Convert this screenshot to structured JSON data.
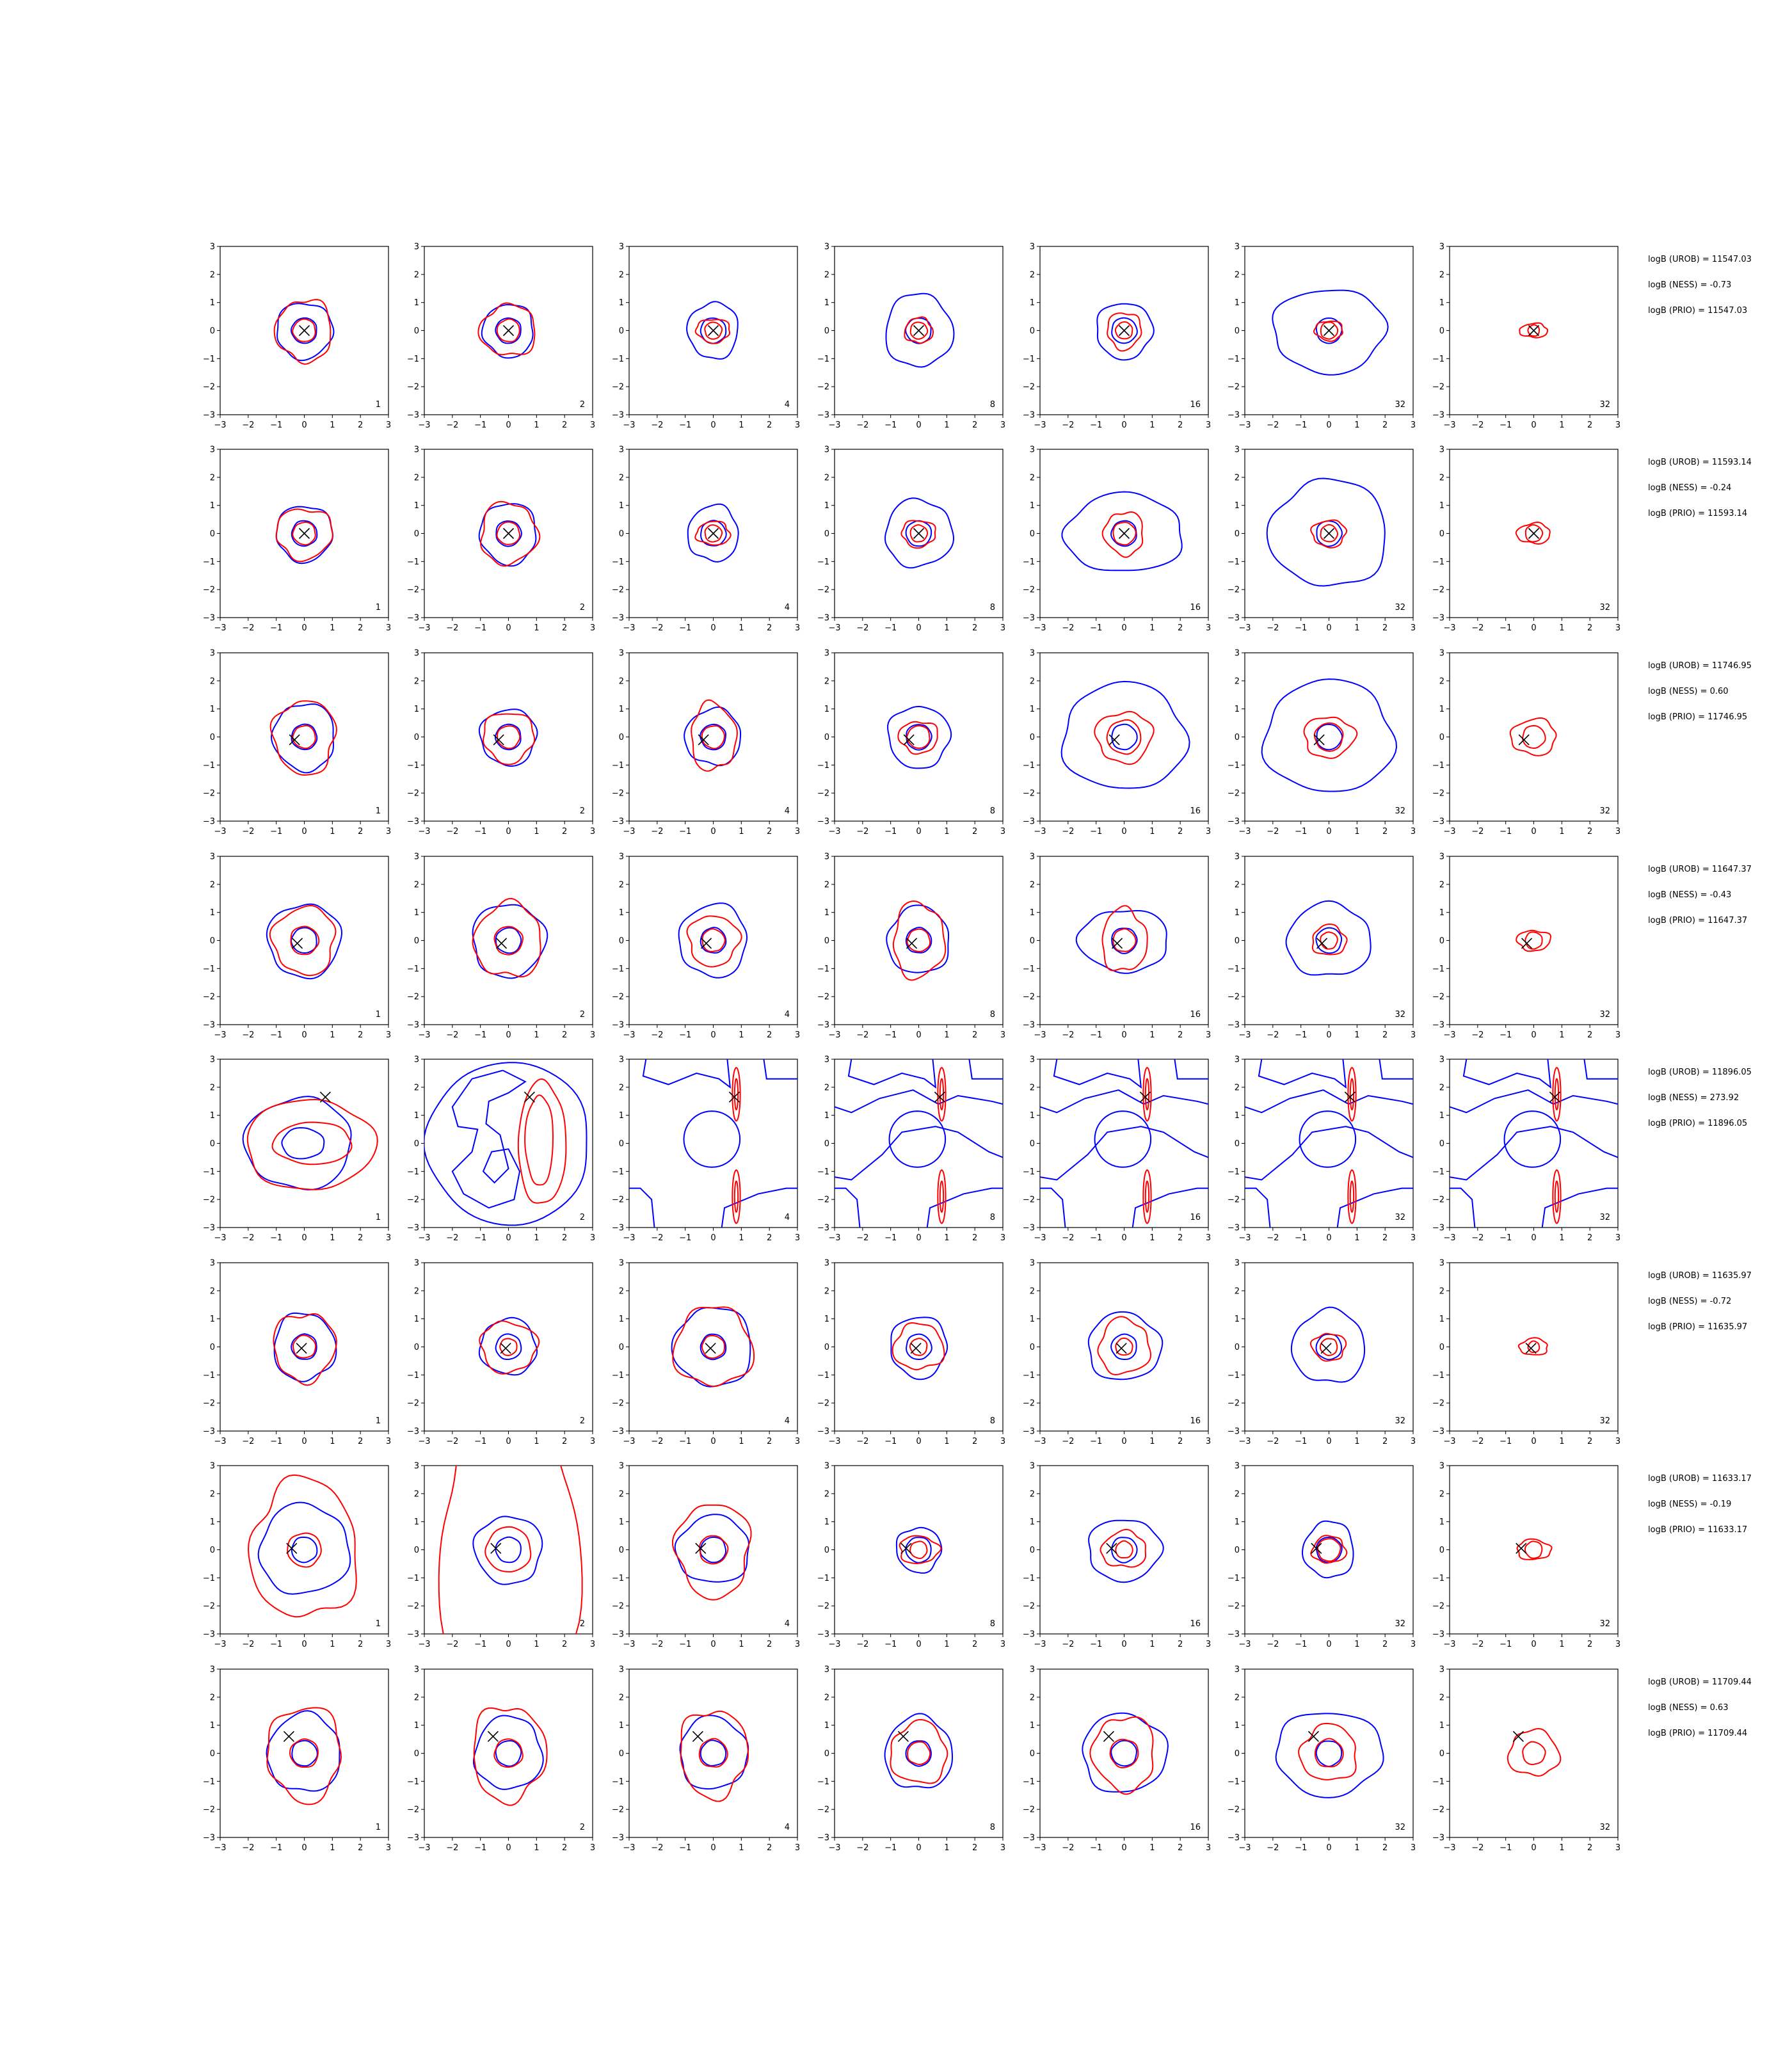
{
  "chart_data": {
    "type": "contour-grid",
    "xlim": [
      -3,
      3
    ],
    "ylim": [
      -3,
      3
    ],
    "ticks": [
      "−3",
      "−2",
      "−1",
      "0",
      "1",
      "2",
      "3"
    ],
    "tick_values": [
      -3,
      -2,
      -1,
      0,
      1,
      2,
      3
    ],
    "colors": {
      "blue": "#0000ff",
      "red": "#ff0000",
      "marker": "#000000"
    },
    "column_labels": [
      "1",
      "2",
      "4",
      "8",
      "16",
      "32",
      "32"
    ],
    "rows": [
      {
        "marker": [
          0.0,
          0.0
        ],
        "stats": [
          "logB (UROB) = 11547.03",
          "logB (NESS) = -0.73",
          "logB (PRIO) = 11547.03"
        ],
        "blue": [
          [
            1.0,
            1.0,
            0.9
          ],
          [
            0.9,
            0.95,
            0.9
          ],
          [
            0.9,
            1.0,
            0.8
          ],
          [
            1.2,
            1.3,
            0.9
          ],
          [
            1.0,
            1.0,
            0.9
          ],
          [
            2.0,
            1.5,
            1.0
          ],
          [
            0,
            0,
            0
          ]
        ],
        "red": [
          [
            0.4,
            1.0,
            1.1
          ],
          [
            0.4,
            1.0,
            0.9
          ],
          [
            0.3,
            0.6,
            0.7
          ],
          [
            0.3,
            0.5,
            0.9
          ],
          [
            0.3,
            0.6,
            1.1
          ],
          [
            0.3,
            0.5,
            0.7
          ],
          [
            0.2,
            0.5,
            0.5
          ]
        ]
      },
      {
        "marker": [
          0.0,
          0.0
        ],
        "stats": [
          "logB (UROB) = 11593.14",
          "logB (NESS) = -0.24",
          "logB (PRIO) = 11593.14"
        ],
        "blue": [
          [
            1.0,
            1.0,
            0.9
          ],
          [
            1.0,
            1.1,
            1.0
          ],
          [
            0.9,
            1.0,
            0.8
          ],
          [
            1.2,
            1.2,
            0.9
          ],
          [
            2.1,
            1.4,
            1.0
          ],
          [
            2.1,
            1.9,
            1.0
          ],
          [
            0,
            0,
            0
          ]
        ],
        "red": [
          [
            0.4,
            1.0,
            0.9
          ],
          [
            0.4,
            1.0,
            1.1
          ],
          [
            0.3,
            0.6,
            0.7
          ],
          [
            0.3,
            0.6,
            0.8
          ],
          [
            0.4,
            0.7,
            1.1
          ],
          [
            0.3,
            0.6,
            0.8
          ],
          [
            0.3,
            0.6,
            0.6
          ]
        ]
      },
      {
        "marker": [
          -0.35,
          -0.1
        ],
        "stats": [
          "logB (UROB) = 11746.95",
          "logB (NESS) = 0.60",
          "logB (PRIO) = 11746.95"
        ],
        "blue": [
          [
            1.1,
            1.2,
            0.9
          ],
          [
            1.0,
            1.0,
            0.9
          ],
          [
            1.0,
            1.0,
            0.8
          ],
          [
            1.1,
            1.1,
            0.9
          ],
          [
            2.2,
            1.9,
            1.0
          ],
          [
            2.3,
            2.0,
            1.0
          ],
          [
            0,
            0,
            0
          ]
        ],
        "red": [
          [
            0.4,
            1.1,
            1.2
          ],
          [
            0.4,
            0.9,
            1.0
          ],
          [
            0.4,
            0.8,
            1.5
          ],
          [
            0.4,
            0.7,
            0.8
          ],
          [
            0.6,
            1.0,
            0.9
          ],
          [
            0.5,
            0.9,
            0.8
          ],
          [
            0.4,
            0.8,
            0.8
          ]
        ]
      },
      {
        "marker": [
          -0.25,
          -0.1
        ],
        "stats": [
          "logB (UROB) = 11647.37",
          "logB (NESS) = -0.43",
          "logB (PRIO) = 11647.37"
        ],
        "blue": [
          [
            1.3,
            1.3,
            0.9
          ],
          [
            1.3,
            1.3,
            0.9
          ],
          [
            1.2,
            1.3,
            0.9
          ],
          [
            1.1,
            1.2,
            0.9
          ],
          [
            1.6,
            1.1,
            1.0
          ],
          [
            1.5,
            1.3,
            1.0
          ],
          [
            0,
            0,
            0
          ]
        ],
        "red": [
          [
            0.5,
            1.1,
            1.1
          ],
          [
            0.5,
            1.2,
            1.1
          ],
          [
            0.4,
            0.9,
            1.0
          ],
          [
            0.4,
            0.9,
            1.5
          ],
          [
            0.4,
            0.8,
            1.4
          ],
          [
            0.3,
            0.6,
            0.9
          ],
          [
            0.3,
            0.6,
            0.6
          ]
        ]
      },
      {
        "marker": [
          0.75,
          1.65
        ],
        "stats": [
          "logB (UROB) = 11896.05",
          "logB (NESS) = 273.92",
          "logB (PRIO) = 11896.05"
        ],
        "blue": [
          [
            1.9,
            1.7,
            1.0
          ],
          [
            2.5,
            2.8,
            1.0
          ],
          [
            0,
            0,
            0
          ],
          [
            0,
            0,
            0
          ],
          [
            0,
            0,
            0
          ],
          [
            0,
            0,
            0
          ],
          [
            0,
            0,
            0
          ]
        ],
        "red": [
          [
            0.9,
            2.2,
            1.2
          ],
          [
            0.8,
            2.2,
            1.8
          ],
          [
            0,
            0,
            0
          ],
          [
            0,
            0,
            0
          ],
          [
            0,
            0,
            0
          ],
          [
            0,
            0,
            0
          ],
          [
            0,
            0,
            0
          ]
        ]
      },
      {
        "marker": [
          -0.1,
          -0.05
        ],
        "stats": [
          "logB (UROB) = 11635.97",
          "logB (NESS) = -0.72",
          "logB (PRIO) = 11635.97"
        ],
        "blue": [
          [
            1.1,
            1.2,
            0.9
          ],
          [
            1.0,
            1.0,
            0.9
          ],
          [
            1.4,
            1.4,
            0.9
          ],
          [
            1.0,
            1.1,
            0.9
          ],
          [
            1.3,
            1.2,
            1.0
          ],
          [
            1.3,
            1.3,
            1.0
          ],
          [
            0,
            0,
            0
          ]
        ],
        "red": [
          [
            0.4,
            1.1,
            1.1
          ],
          [
            0.3,
            1.0,
            0.9
          ],
          [
            0.4,
            1.4,
            1.0
          ],
          [
            0.3,
            0.9,
            0.9
          ],
          [
            0.3,
            0.9,
            1.1
          ],
          [
            0.3,
            0.6,
            0.8
          ],
          [
            0.2,
            0.5,
            0.6
          ]
        ]
      },
      {
        "marker": [
          -0.45,
          0.05
        ],
        "stats": [
          "logB (UROB) = 11633.17",
          "logB (NESS) = -0.19",
          "logB (PRIO) = 11633.17"
        ],
        "blue": [
          [
            1.6,
            1.6,
            0.9
          ],
          [
            1.2,
            1.2,
            0.9
          ],
          [
            1.3,
            1.2,
            0.9
          ],
          [
            0.8,
            0.8,
            0.9
          ],
          [
            1.3,
            1.1,
            1.0
          ],
          [
            0.9,
            1.0,
            1.0
          ],
          [
            0,
            0,
            0
          ]
        ],
        "red": [
          [
            0.6,
            1.9,
            1.3
          ],
          [
            0.8,
            2.5,
            2.2
          ],
          [
            0.5,
            1.3,
            1.3
          ],
          [
            0.3,
            0.7,
            0.7
          ],
          [
            0.3,
            0.8,
            0.8
          ],
          [
            0.4,
            0.6,
            0.8
          ],
          [
            0.3,
            0.6,
            0.6
          ]
        ]
      },
      {
        "marker": [
          -0.55,
          0.6
        ],
        "stats": [
          "logB (UROB) = 11709.44",
          "logB (NESS) = 0.63",
          "logB (PRIO) = 11709.44"
        ],
        "blue": [
          [
            1.3,
            1.4,
            0.9
          ],
          [
            1.2,
            1.3,
            0.9
          ],
          [
            1.2,
            1.3,
            0.9
          ],
          [
            1.2,
            1.3,
            0.9
          ],
          [
            1.5,
            1.4,
            1.0
          ],
          [
            1.9,
            1.5,
            1.0
          ],
          [
            0,
            0,
            0
          ]
        ],
        "red": [
          [
            0.5,
            1.3,
            1.3
          ],
          [
            0.5,
            1.3,
            1.3
          ],
          [
            0.5,
            1.2,
            1.3
          ],
          [
            0.4,
            1.0,
            1.1
          ],
          [
            0.5,
            1.1,
            1.2
          ],
          [
            0.5,
            1.0,
            1.0
          ],
          [
            0.4,
            0.9,
            0.9
          ]
        ]
      }
    ]
  }
}
